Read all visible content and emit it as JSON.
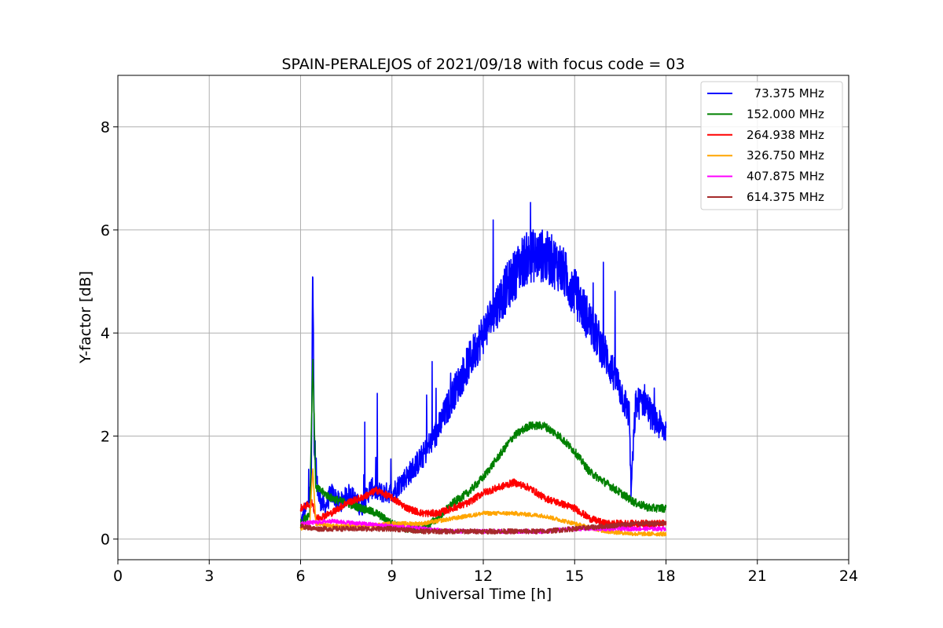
{
  "chart_data": {
    "type": "line",
    "title": "SPAIN-PERALEJOS of 2021/09/18 with focus code = 03",
    "xlabel": "Universal Time [h]",
    "ylabel": "Y-factor [dB]",
    "xlim": [
      0,
      24
    ],
    "ylim": [
      -0.4,
      9.0
    ],
    "xticks": [
      0,
      3,
      6,
      9,
      12,
      15,
      18,
      21,
      24
    ],
    "yticks": [
      0,
      2,
      4,
      6,
      8
    ],
    "grid": true,
    "legend_position": "top-right",
    "series": [
      {
        "name": "  73.375 MHz",
        "color": "#0000ff",
        "x": [
          6.0,
          6.2,
          6.35,
          6.4,
          6.45,
          6.6,
          6.8,
          7.0,
          7.3,
          7.6,
          8.0,
          8.3,
          8.6,
          9.0,
          9.3,
          9.6,
          10.0,
          10.5,
          11.0,
          11.5,
          12.0,
          12.5,
          13.0,
          13.3,
          13.6,
          14.0,
          14.5,
          15.0,
          15.5,
          16.0,
          16.5,
          16.8,
          16.85,
          17.0,
          17.3,
          17.6,
          18.0
        ],
        "y": [
          0.3,
          0.6,
          1.0,
          5.3,
          1.5,
          0.8,
          0.6,
          0.9,
          0.7,
          0.9,
          0.6,
          1.0,
          0.9,
          0.9,
          1.1,
          1.3,
          1.6,
          2.1,
          2.8,
          3.4,
          4.0,
          4.6,
          5.1,
          5.4,
          5.5,
          5.5,
          5.3,
          4.8,
          4.2,
          3.6,
          2.9,
          2.4,
          0.9,
          2.6,
          2.7,
          2.3,
          2.1
        ]
      },
      {
        "name": "152.000 MHz",
        "color": "#008000",
        "x": [
          6.0,
          6.3,
          6.4,
          6.5,
          7.0,
          7.5,
          8.0,
          8.5,
          9.0,
          9.5,
          10.0,
          10.5,
          11.0,
          11.5,
          12.0,
          12.5,
          13.0,
          13.5,
          14.0,
          14.5,
          15.0,
          15.5,
          16.0,
          16.5,
          17.0,
          17.5,
          18.0
        ],
        "y": [
          0.3,
          0.5,
          3.5,
          1.0,
          0.8,
          0.7,
          0.6,
          0.5,
          0.3,
          0.2,
          0.2,
          0.4,
          0.7,
          0.9,
          1.2,
          1.6,
          2.0,
          2.2,
          2.2,
          2.0,
          1.7,
          1.3,
          1.1,
          0.9,
          0.7,
          0.6,
          0.6
        ]
      },
      {
        "name": "264.938 MHz",
        "color": "#ff0000",
        "x": [
          6.0,
          6.4,
          6.5,
          7.0,
          7.5,
          8.0,
          8.5,
          9.0,
          9.5,
          10.0,
          10.5,
          11.0,
          11.5,
          12.0,
          12.5,
          13.0,
          13.5,
          14.0,
          14.5,
          15.0,
          15.5,
          16.0,
          16.5,
          17.0,
          17.5,
          18.0
        ],
        "y": [
          0.6,
          0.7,
          0.4,
          0.5,
          0.7,
          0.8,
          0.95,
          0.8,
          0.6,
          0.5,
          0.5,
          0.6,
          0.7,
          0.9,
          1.0,
          1.1,
          1.0,
          0.8,
          0.7,
          0.6,
          0.4,
          0.3,
          0.3,
          0.3,
          0.3,
          0.3
        ]
      },
      {
        "name": "326.750 MHz",
        "color": "#ffa500",
        "x": [
          6.0,
          6.3,
          6.4,
          6.5,
          7.0,
          8.0,
          9.0,
          10.0,
          11.0,
          12.0,
          12.5,
          13.0,
          14.0,
          15.0,
          16.0,
          17.0,
          18.0
        ],
        "y": [
          0.2,
          0.3,
          1.4,
          0.3,
          0.25,
          0.25,
          0.3,
          0.3,
          0.4,
          0.5,
          0.5,
          0.5,
          0.45,
          0.3,
          0.15,
          0.1,
          0.1
        ]
      },
      {
        "name": "407.875 MHz",
        "color": "#ff00ff",
        "x": [
          6.0,
          7.0,
          8.0,
          9.0,
          10.0,
          11.0,
          12.0,
          13.0,
          14.0,
          15.0,
          16.0,
          17.0,
          18.0
        ],
        "y": [
          0.3,
          0.35,
          0.3,
          0.25,
          0.2,
          0.15,
          0.15,
          0.15,
          0.15,
          0.2,
          0.2,
          0.2,
          0.2
        ]
      },
      {
        "name": "614.375 MHz",
        "color": "#a52a2a",
        "x": [
          6.0,
          6.5,
          7.0,
          8.0,
          9.0,
          10.0,
          11.0,
          12.0,
          13.0,
          14.0,
          15.0,
          16.0,
          17.0,
          18.0
        ],
        "y": [
          0.25,
          0.2,
          0.2,
          0.2,
          0.2,
          0.15,
          0.15,
          0.15,
          0.15,
          0.15,
          0.2,
          0.25,
          0.3,
          0.3
        ]
      }
    ]
  }
}
